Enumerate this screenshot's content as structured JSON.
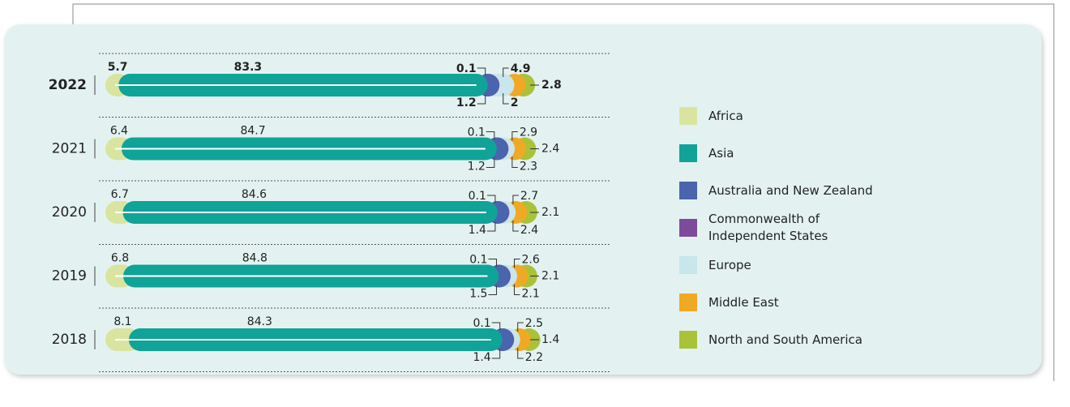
{
  "chart_data": {
    "type": "stacked-pill-bar",
    "categories": [
      "2022",
      "2021",
      "2020",
      "2019",
      "2018"
    ],
    "series": [
      {
        "name": "Africa",
        "color": "#d9e4a0",
        "values": [
          5.7,
          6.4,
          6.7,
          6.8,
          8.1
        ]
      },
      {
        "name": "Asia",
        "color": "#10a398",
        "values": [
          83.3,
          84.7,
          84.6,
          84.8,
          84.3
        ]
      },
      {
        "name": "Australia and New Zealand",
        "color": "#4a64ae",
        "values": [
          0.1,
          0.1,
          0.1,
          0.1,
          0.1
        ]
      },
      {
        "name": "Commonwealth of Independent States",
        "color": "#7d4a9c",
        "values": [
          1.2,
          1.2,
          1.4,
          1.5,
          1.4
        ]
      },
      {
        "name": "Europe",
        "color": "#c8e6ec",
        "values": [
          4.9,
          2.9,
          2.7,
          2.6,
          2.5
        ]
      },
      {
        "name": "Middle East",
        "color": "#f0a924",
        "values": [
          2.0,
          2.3,
          2.4,
          2.1,
          2.2
        ]
      },
      {
        "name": "North and South America",
        "color": "#a9c23a",
        "values": [
          2.8,
          2.4,
          2.1,
          2.1,
          1.4
        ]
      }
    ]
  }
}
